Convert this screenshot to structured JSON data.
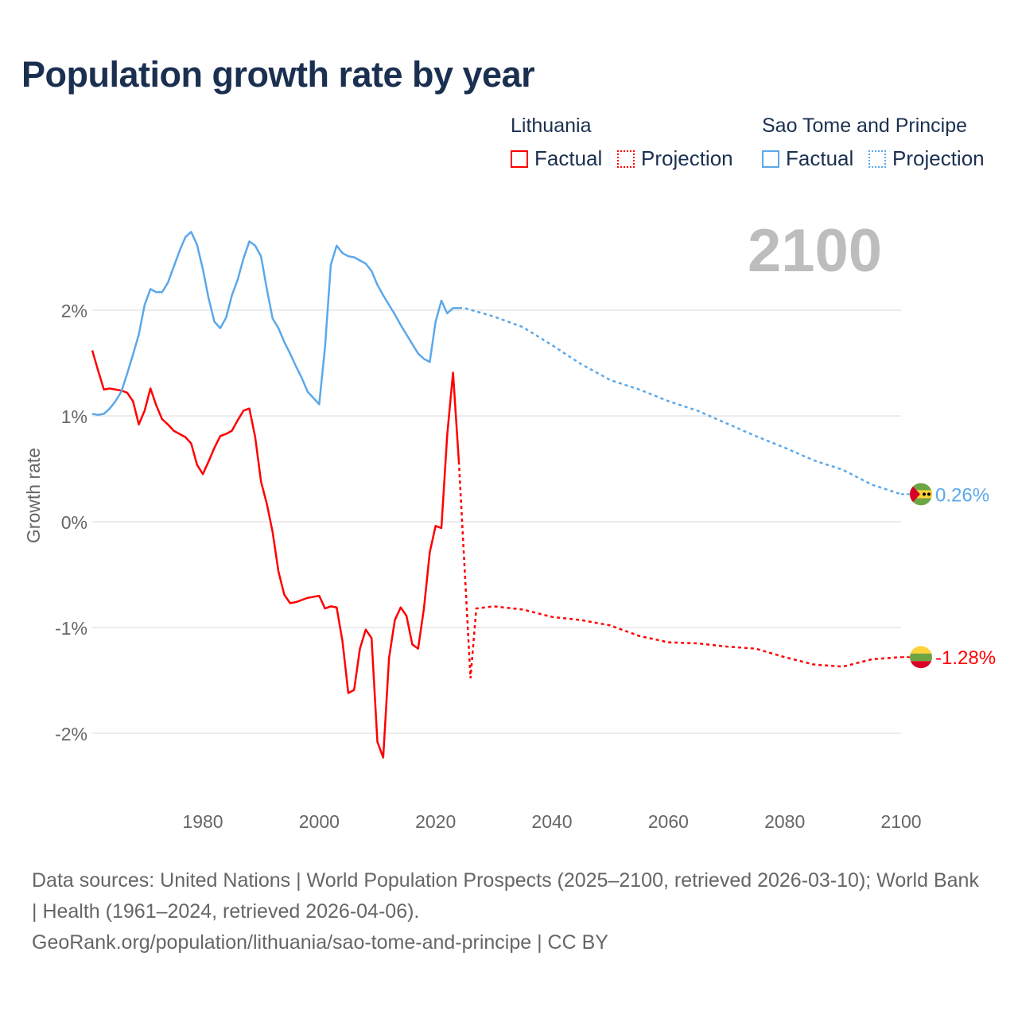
{
  "title": "Population growth rate by year",
  "year_label": "2100",
  "legend": {
    "groups": [
      {
        "name": "Lithuania",
        "factual": "Factual",
        "projection": "Projection",
        "color": "#ff0000"
      },
      {
        "name": "Sao Tome and Principe",
        "factual": "Factual",
        "projection": "Projection",
        "color": "#5ba8ea"
      }
    ]
  },
  "footer": {
    "sources": "Data sources: United Nations | World Population Prospects (2025–2100, retrieved 2026-03-10); World Bank | Health (1961–2024, retrieved 2026-04-06).",
    "link": "GeoRank.org/population/lithuania/sao-tome-and-principe | CC BY"
  },
  "chart_data": {
    "type": "line",
    "title": "Population growth rate by year",
    "xlabel": "",
    "ylabel": "Growth rate",
    "xlim": [
      1961,
      2100
    ],
    "ylim": [
      -2.6,
      3.0
    ],
    "grid": true,
    "x_ticks": [
      1980,
      2000,
      2020,
      2040,
      2060,
      2080,
      2100
    ],
    "x_tick_labels": [
      "1980",
      "2000",
      "2020",
      "2040",
      "2060",
      "2080",
      "2100"
    ],
    "y_ticks": [
      2,
      1,
      0,
      -1,
      -2
    ],
    "y_tick_labels": [
      "2%",
      "1%",
      "0%",
      "-1%",
      "-2%"
    ],
    "series": [
      {
        "name": "Lithuania",
        "color": "#ff0000",
        "end_label": "-1.28%",
        "factual": {
          "start_year": 1961,
          "values": [
            1.62,
            1.43,
            1.25,
            1.26,
            1.25,
            1.24,
            1.22,
            1.14,
            0.92,
            1.05,
            1.26,
            1.1,
            0.97,
            0.92,
            0.86,
            0.83,
            0.8,
            0.74,
            0.54,
            0.45,
            0.57,
            0.7,
            0.81,
            0.83,
            0.86,
            0.96,
            1.05,
            1.07,
            0.8,
            0.38,
            0.17,
            -0.1,
            -0.47,
            -0.69,
            -0.77,
            -0.76,
            -0.74,
            -0.72,
            -0.71,
            -0.7,
            -0.82,
            -0.8,
            -0.81,
            -1.13,
            -1.62,
            -1.59,
            -1.2,
            -1.02,
            -1.1,
            -2.08,
            -2.23,
            -1.29,
            -0.93,
            -0.81,
            -0.89,
            -1.16,
            -1.2,
            -0.82,
            -0.29,
            -0.04,
            -0.06,
            0.82,
            1.41,
            0.57
          ]
        },
        "projection": {
          "x": [
            2024,
            2025,
            2026,
            2027,
            2030,
            2035,
            2040,
            2045,
            2050,
            2055,
            2060,
            2065,
            2070,
            2075,
            2080,
            2085,
            2090,
            2095,
            2100
          ],
          "values": [
            0.57,
            -0.45,
            -1.48,
            -0.82,
            -0.8,
            -0.83,
            -0.9,
            -0.93,
            -0.98,
            -1.08,
            -1.14,
            -1.15,
            -1.18,
            -1.2,
            -1.28,
            -1.35,
            -1.37,
            -1.3,
            -1.28
          ]
        }
      },
      {
        "name": "Sao Tome and Principe",
        "color": "#5ba8ea",
        "end_label": "0.26%",
        "factual": {
          "start_year": 1961,
          "values": [
            1.02,
            1.01,
            1.02,
            1.07,
            1.14,
            1.23,
            1.4,
            1.58,
            1.77,
            2.05,
            2.2,
            2.17,
            2.17,
            2.26,
            2.41,
            2.56,
            2.69,
            2.74,
            2.62,
            2.39,
            2.11,
            1.89,
            1.83,
            1.93,
            2.14,
            2.29,
            2.49,
            2.65,
            2.61,
            2.51,
            2.2,
            1.92,
            1.83,
            1.7,
            1.59,
            1.47,
            1.36,
            1.23,
            1.17,
            1.11,
            1.65,
            2.43,
            2.61,
            2.54,
            2.51,
            2.5,
            2.47,
            2.44,
            2.37,
            2.24,
            2.14,
            2.05,
            1.96,
            1.86,
            1.77,
            1.68,
            1.59,
            1.54,
            1.51,
            1.89,
            2.09,
            1.97,
            2.02,
            2.02
          ]
        },
        "projection": {
          "x": [
            2024,
            2025,
            2030,
            2035,
            2040,
            2045,
            2050,
            2055,
            2060,
            2065,
            2070,
            2075,
            2080,
            2085,
            2090,
            2095,
            2100
          ],
          "values": [
            2.02,
            2.02,
            1.94,
            1.84,
            1.67,
            1.49,
            1.34,
            1.25,
            1.14,
            1.05,
            0.93,
            0.81,
            0.7,
            0.58,
            0.49,
            0.35,
            0.26
          ]
        }
      }
    ]
  }
}
